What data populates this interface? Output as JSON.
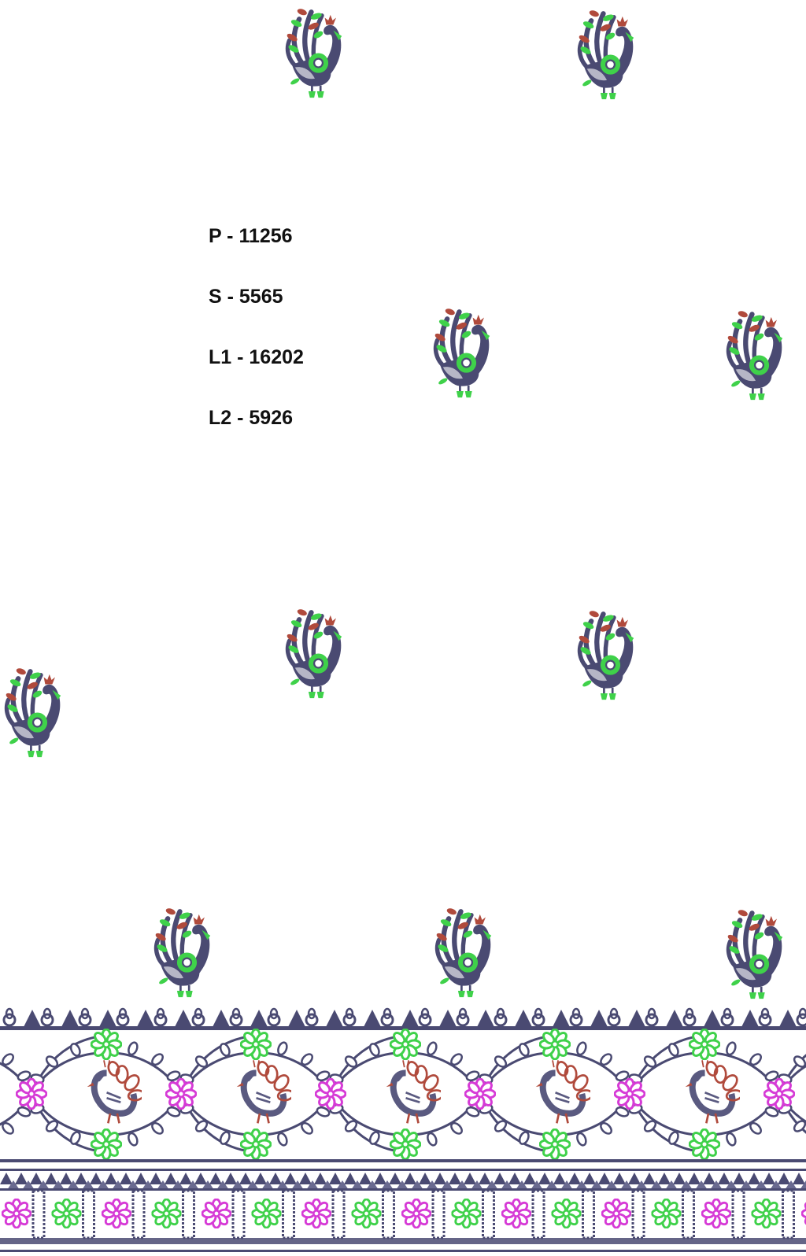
{
  "stitch_counts": [
    {
      "label": "P - 11256"
    },
    {
      "label": "S - 5565"
    },
    {
      "label": "L1 - 16202"
    },
    {
      "label": "L2 - 5926"
    }
  ],
  "colors": {
    "navy_thread": "#4a4a72",
    "green_thread": "#3fd14a",
    "red_thread": "#b04a3c",
    "magenta_thread": "#d63bd6",
    "background": "#ffffff"
  },
  "motifs": {
    "butta": "peacock-icon",
    "border_flower_green": "flower-icon",
    "border_flower_magenta": "flower-icon",
    "border_peacock": "peacock-icon"
  }
}
